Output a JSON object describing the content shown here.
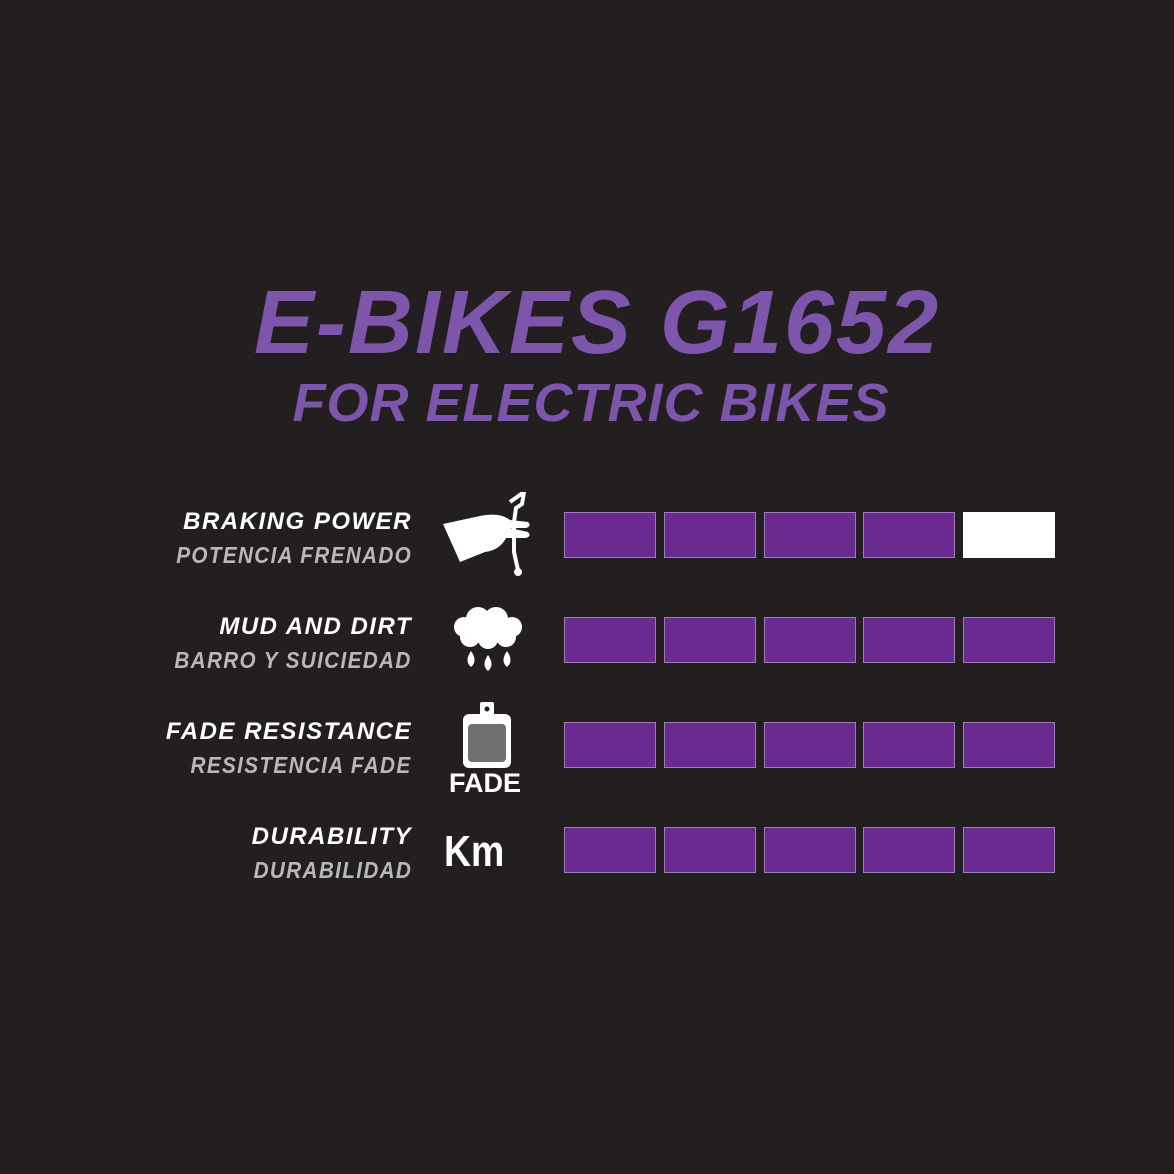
{
  "header": {
    "title": "E-BIKES G1652",
    "subtitle": "FOR ELECTRIC BIKES"
  },
  "colors": {
    "background": "#231f20",
    "accent": "#7d56ab",
    "bar_filled": "#6b2a8f",
    "bar_empty": "#ffffff"
  },
  "rating_max": 5,
  "ratings": [
    {
      "label": "BRAKING POWER",
      "label_es": "POTENCIA FRENADO",
      "icon": "hand-brake-lever-icon",
      "value": 4
    },
    {
      "label": "MUD AND DIRT",
      "label_es": "BARRO Y SUICIEDAD",
      "icon": "rain-cloud-icon",
      "value": 5
    },
    {
      "label": "FADE RESISTANCE",
      "label_es": "RESISTENCIA FADE",
      "icon": "brake-pad-icon",
      "icon_text": "FADE",
      "value": 5
    },
    {
      "label": "DURABILITY",
      "label_es": "DURABILIDAD",
      "icon": "km-icon",
      "icon_text": "Km",
      "value": 5
    }
  ]
}
